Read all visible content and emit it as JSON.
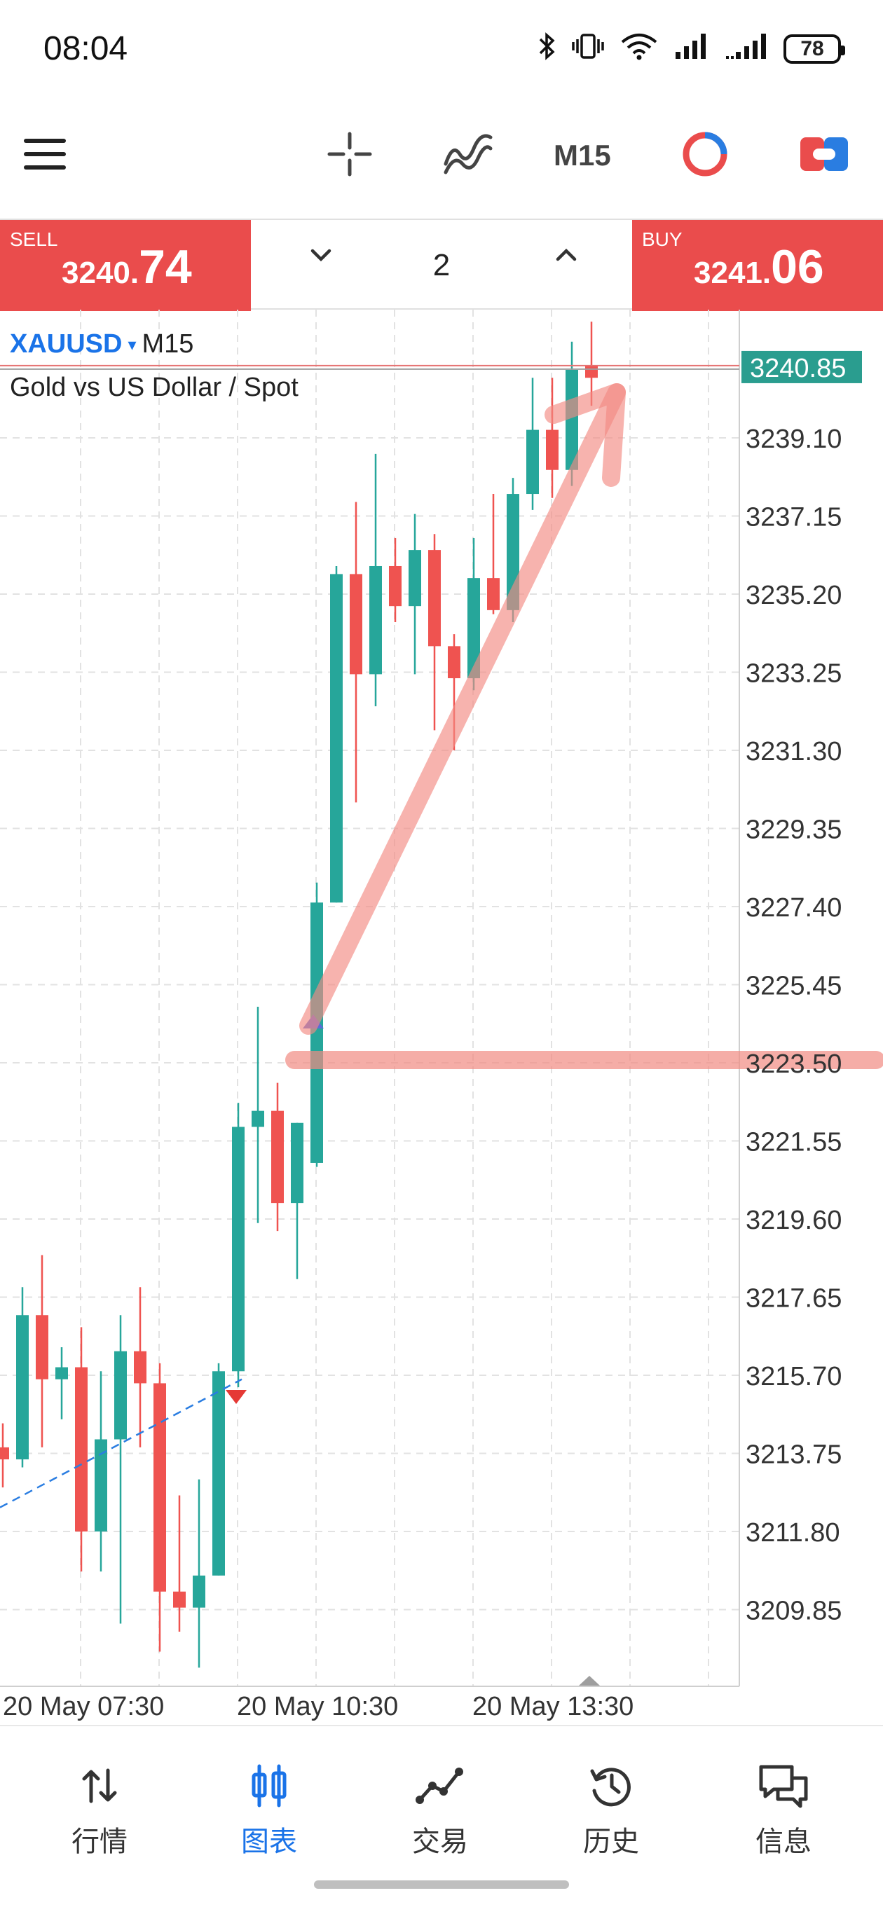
{
  "status_bar": {
    "time": "08:04",
    "battery": "78"
  },
  "toolbar": {
    "timeframe": "M15"
  },
  "price_bar": {
    "sell_label": "SELL",
    "sell_price_small": "3240.",
    "sell_price_big": "74",
    "buy_label": "BUY",
    "buy_price_small": "3241.",
    "buy_price_big": "06",
    "lot": "2",
    "sell_color": "#ea4c4c",
    "buy_color": "#ea4c4c"
  },
  "chart_header": {
    "symbol": "XAUUSD",
    "caret": "▾",
    "timeframe": "M15",
    "description": "Gold vs US Dollar / Spot"
  },
  "chart_data": {
    "type": "candlestick",
    "symbol": "XAUUSD",
    "timeframe": "M15",
    "current_price": "3240.85",
    "current_price_value": 3240.85,
    "horizontal_level": 3223.5,
    "y_ticks": [
      "3239.10",
      "3237.15",
      "3235.20",
      "3233.25",
      "3231.30",
      "3229.35",
      "3227.40",
      "3225.45",
      "3223.50",
      "3221.55",
      "3219.60",
      "3217.65",
      "3215.70",
      "3213.75",
      "3211.80",
      "3209.85"
    ],
    "x_ticks": [
      "20 May 07:30",
      "20 May 10:30",
      "20 May 13:30"
    ],
    "up_color": "#26a69a",
    "down_color": "#ef5350",
    "candles": [
      {
        "o": 3213.9,
        "h": 3214.5,
        "l": 3212.9,
        "c": 3213.6
      },
      {
        "o": 3213.6,
        "h": 3217.9,
        "l": 3213.4,
        "c": 3217.2
      },
      {
        "o": 3217.2,
        "h": 3218.7,
        "l": 3213.9,
        "c": 3215.6
      },
      {
        "o": 3215.6,
        "h": 3216.4,
        "l": 3214.6,
        "c": 3215.9
      },
      {
        "o": 3215.9,
        "h": 3216.9,
        "l": 3210.8,
        "c": 3211.8
      },
      {
        "o": 3211.8,
        "h": 3215.8,
        "l": 3210.8,
        "c": 3214.1
      },
      {
        "o": 3214.1,
        "h": 3217.2,
        "l": 3209.5,
        "c": 3216.3
      },
      {
        "o": 3216.3,
        "h": 3217.9,
        "l": 3213.9,
        "c": 3215.5
      },
      {
        "o": 3215.5,
        "h": 3216.0,
        "l": 3208.8,
        "c": 3210.3
      },
      {
        "o": 3210.3,
        "h": 3212.7,
        "l": 3209.3,
        "c": 3209.9
      },
      {
        "o": 3209.9,
        "h": 3213.1,
        "l": 3208.4,
        "c": 3210.7
      },
      {
        "o": 3210.7,
        "h": 3216.0,
        "l": 3210.7,
        "c": 3215.8
      },
      {
        "o": 3215.8,
        "h": 3222.5,
        "l": 3215.4,
        "c": 3221.9
      },
      {
        "o": 3221.9,
        "h": 3224.9,
        "l": 3219.5,
        "c": 3222.3
      },
      {
        "o": 3222.3,
        "h": 3223.0,
        "l": 3219.3,
        "c": 3220.0
      },
      {
        "o": 3220.0,
        "h": 3222.0,
        "l": 3218.1,
        "c": 3222.0
      },
      {
        "o": 3221.0,
        "h": 3228.0,
        "l": 3220.9,
        "c": 3227.5
      },
      {
        "o": 3227.5,
        "h": 3235.9,
        "l": 3227.5,
        "c": 3235.7
      },
      {
        "o": 3235.7,
        "h": 3237.5,
        "l": 3230.0,
        "c": 3233.2
      },
      {
        "o": 3233.2,
        "h": 3238.7,
        "l": 3232.4,
        "c": 3235.9
      },
      {
        "o": 3235.9,
        "h": 3236.6,
        "l": 3234.5,
        "c": 3234.9
      },
      {
        "o": 3234.9,
        "h": 3237.2,
        "l": 3233.2,
        "c": 3236.3
      },
      {
        "o": 3236.3,
        "h": 3236.7,
        "l": 3231.8,
        "c": 3233.9
      },
      {
        "o": 3233.9,
        "h": 3234.2,
        "l": 3231.3,
        "c": 3233.1
      },
      {
        "o": 3233.1,
        "h": 3236.6,
        "l": 3232.8,
        "c": 3235.6
      },
      {
        "o": 3235.6,
        "h": 3237.7,
        "l": 3234.7,
        "c": 3234.8
      },
      {
        "o": 3234.8,
        "h": 3238.1,
        "l": 3234.5,
        "c": 3237.7
      },
      {
        "o": 3237.7,
        "h": 3240.6,
        "l": 3237.3,
        "c": 3239.3
      },
      {
        "o": 3239.3,
        "h": 3240.6,
        "l": 3237.6,
        "c": 3238.3
      },
      {
        "o": 3238.3,
        "h": 3241.5,
        "l": 3237.9,
        "c": 3240.8
      },
      {
        "o": 3240.9,
        "h": 3242.0,
        "l": 3239.9,
        "c": 3240.6
      }
    ]
  },
  "nav": {
    "items": [
      {
        "label": "行情",
        "icon": "quotes-icon"
      },
      {
        "label": "图表",
        "icon": "chart-icon"
      },
      {
        "label": "交易",
        "icon": "trade-icon"
      },
      {
        "label": "历史",
        "icon": "history-icon"
      },
      {
        "label": "信息",
        "icon": "messages-icon"
      }
    ],
    "active_color": "#1a73e8"
  }
}
